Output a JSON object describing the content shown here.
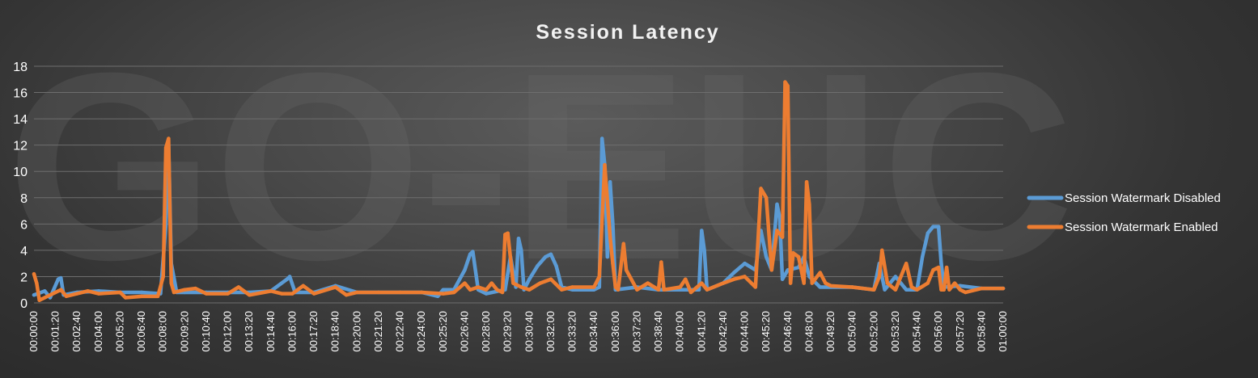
{
  "chart_data": {
    "type": "line",
    "title": "Session Latency",
    "xlabel": "",
    "ylabel": "",
    "ylim": [
      0,
      18
    ],
    "y_ticks": [
      0,
      2,
      4,
      6,
      8,
      10,
      12,
      14,
      16,
      18
    ],
    "x_range": [
      "00:00:00",
      "01:00:00"
    ],
    "x_sample_interval_seconds": 10,
    "x_ticks": [
      "00:00:00",
      "00:01:20",
      "00:02:40",
      "00:04:00",
      "00:05:20",
      "00:06:40",
      "00:08:00",
      "00:09:20",
      "00:10:40",
      "00:12:00",
      "00:13:20",
      "00:14:40",
      "00:16:00",
      "00:17:20",
      "00:18:40",
      "00:20:00",
      "00:21:20",
      "00:22:40",
      "00:24:00",
      "00:25:20",
      "00:26:40",
      "00:28:00",
      "00:29:20",
      "00:30:40",
      "00:32:00",
      "00:33:20",
      "00:34:40",
      "00:36:00",
      "00:37:20",
      "00:38:40",
      "00:40:00",
      "00:41:20",
      "00:42:40",
      "00:44:00",
      "00:45:20",
      "00:46:40",
      "00:48:00",
      "00:49:20",
      "00:50:40",
      "00:52:00",
      "00:53:20",
      "00:54:40",
      "00:56:00",
      "00:57:20",
      "00:58:40",
      "01:00:00"
    ],
    "gridlines": true,
    "legend_position": "right",
    "watermark": "GO-EUC",
    "series": [
      {
        "name": "Session Watermark Disabled",
        "color": "#5b9bd5",
        "points": [
          [
            "00:00:00",
            0.6
          ],
          [
            "00:00:40",
            0.9
          ],
          [
            "00:01:00",
            0.4
          ],
          [
            "00:01:30",
            1.8
          ],
          [
            "00:01:40",
            1.9
          ],
          [
            "00:01:50",
            0.6
          ],
          [
            "00:02:40",
            0.8
          ],
          [
            "00:04:00",
            0.9
          ],
          [
            "00:05:20",
            0.8
          ],
          [
            "00:06:40",
            0.8
          ],
          [
            "00:07:50",
            0.7
          ],
          [
            "00:08:10",
            6.0
          ],
          [
            "00:08:20",
            12.0
          ],
          [
            "00:08:30",
            3.0
          ],
          [
            "00:08:50",
            0.8
          ],
          [
            "00:09:20",
            0.8
          ],
          [
            "00:10:40",
            0.8
          ],
          [
            "00:12:00",
            0.8
          ],
          [
            "00:13:20",
            0.8
          ],
          [
            "00:14:40",
            0.9
          ],
          [
            "00:15:40",
            1.8
          ],
          [
            "00:15:50",
            2.0
          ],
          [
            "00:16:10",
            0.8
          ],
          [
            "00:17:20",
            0.8
          ],
          [
            "00:18:40",
            1.3
          ],
          [
            "00:20:00",
            0.8
          ],
          [
            "00:21:20",
            0.8
          ],
          [
            "00:22:40",
            0.8
          ],
          [
            "00:24:00",
            0.8
          ],
          [
            "00:25:00",
            0.5
          ],
          [
            "00:25:20",
            1.0
          ],
          [
            "00:26:00",
            1.0
          ],
          [
            "00:26:40",
            2.5
          ],
          [
            "00:27:00",
            3.7
          ],
          [
            "00:27:10",
            3.9
          ],
          [
            "00:27:30",
            1.0
          ],
          [
            "00:28:00",
            0.7
          ],
          [
            "00:29:10",
            1.0
          ],
          [
            "00:29:30",
            3.5
          ],
          [
            "00:29:50",
            1.2
          ],
          [
            "00:30:00",
            4.9
          ],
          [
            "00:30:10",
            4.0
          ],
          [
            "00:30:20",
            1.0
          ],
          [
            "00:30:40",
            1.8
          ],
          [
            "00:31:10",
            2.8
          ],
          [
            "00:31:40",
            3.5
          ],
          [
            "00:32:00",
            3.7
          ],
          [
            "00:32:20",
            2.8
          ],
          [
            "00:32:40",
            1.2
          ],
          [
            "00:33:20",
            1.0
          ],
          [
            "00:34:40",
            1.0
          ],
          [
            "00:35:00",
            1.2
          ],
          [
            "00:35:10",
            12.5
          ],
          [
            "00:35:20",
            10.5
          ],
          [
            "00:35:30",
            3.5
          ],
          [
            "00:35:40",
            9.2
          ],
          [
            "00:35:50",
            6.0
          ],
          [
            "00:36:00",
            1.0
          ],
          [
            "00:37:20",
            1.2
          ],
          [
            "00:38:40",
            1.0
          ],
          [
            "00:40:00",
            1.0
          ],
          [
            "00:41:10",
            1.0
          ],
          [
            "00:41:20",
            5.5
          ],
          [
            "00:41:30",
            4.0
          ],
          [
            "00:41:40",
            1.0
          ],
          [
            "00:42:40",
            1.5
          ],
          [
            "00:43:20",
            2.3
          ],
          [
            "00:44:00",
            3.0
          ],
          [
            "00:44:40",
            2.5
          ],
          [
            "00:45:00",
            5.5
          ],
          [
            "00:45:20",
            3.5
          ],
          [
            "00:45:40",
            2.5
          ],
          [
            "00:46:00",
            7.5
          ],
          [
            "00:46:10",
            6.5
          ],
          [
            "00:46:20",
            1.8
          ],
          [
            "00:46:40",
            2.5
          ],
          [
            "00:47:20",
            2.7
          ],
          [
            "00:47:40",
            3.5
          ],
          [
            "00:48:00",
            2.0
          ],
          [
            "00:48:40",
            1.2
          ],
          [
            "00:49:20",
            1.2
          ],
          [
            "00:50:40",
            1.2
          ],
          [
            "00:52:00",
            1.0
          ],
          [
            "00:52:20",
            3.0
          ],
          [
            "00:52:40",
            1.0
          ],
          [
            "00:53:20",
            2.0
          ],
          [
            "00:54:00",
            1.0
          ],
          [
            "00:54:40",
            1.0
          ],
          [
            "00:55:00",
            3.5
          ],
          [
            "00:55:20",
            5.3
          ],
          [
            "00:55:40",
            5.8
          ],
          [
            "00:56:00",
            5.8
          ],
          [
            "00:56:10",
            3.0
          ],
          [
            "00:56:20",
            1.2
          ],
          [
            "00:57:20",
            1.3
          ],
          [
            "00:58:40",
            1.1
          ],
          [
            "01:00:00",
            1.1
          ]
        ]
      },
      {
        "name": "Session Watermark Enabled",
        "color": "#ed7d31",
        "points": [
          [
            "00:00:00",
            2.2
          ],
          [
            "00:00:10",
            1.5
          ],
          [
            "00:00:20",
            0.2
          ],
          [
            "00:00:40",
            0.4
          ],
          [
            "00:01:20",
            0.8
          ],
          [
            "00:01:40",
            1.0
          ],
          [
            "00:02:00",
            0.5
          ],
          [
            "00:02:40",
            0.7
          ],
          [
            "00:03:20",
            0.9
          ],
          [
            "00:04:00",
            0.7
          ],
          [
            "00:05:20",
            0.8
          ],
          [
            "00:05:40",
            0.4
          ],
          [
            "00:06:40",
            0.5
          ],
          [
            "00:07:40",
            0.5
          ],
          [
            "00:08:00",
            2.0
          ],
          [
            "00:08:10",
            11.8
          ],
          [
            "00:08:20",
            12.5
          ],
          [
            "00:08:30",
            1.5
          ],
          [
            "00:08:40",
            0.8
          ],
          [
            "00:09:20",
            1.0
          ],
          [
            "00:10:00",
            1.1
          ],
          [
            "00:10:40",
            0.7
          ],
          [
            "00:12:00",
            0.7
          ],
          [
            "00:12:40",
            1.2
          ],
          [
            "00:13:20",
            0.6
          ],
          [
            "00:14:40",
            0.9
          ],
          [
            "00:15:20",
            0.7
          ],
          [
            "00:16:00",
            0.7
          ],
          [
            "00:16:40",
            1.3
          ],
          [
            "00:17:20",
            0.7
          ],
          [
            "00:18:40",
            1.2
          ],
          [
            "00:19:20",
            0.6
          ],
          [
            "00:20:00",
            0.8
          ],
          [
            "00:21:20",
            0.8
          ],
          [
            "00:22:40",
            0.8
          ],
          [
            "00:24:00",
            0.8
          ],
          [
            "00:25:20",
            0.7
          ],
          [
            "00:26:00",
            0.8
          ],
          [
            "00:26:40",
            1.5
          ],
          [
            "00:27:00",
            1.0
          ],
          [
            "00:27:30",
            1.2
          ],
          [
            "00:28:00",
            1.0
          ],
          [
            "00:28:20",
            1.5
          ],
          [
            "00:28:40",
            1.0
          ],
          [
            "00:29:00",
            0.8
          ],
          [
            "00:29:10",
            5.2
          ],
          [
            "00:29:20",
            5.3
          ],
          [
            "00:29:40",
            1.5
          ],
          [
            "00:30:10",
            1.2
          ],
          [
            "00:30:40",
            1.0
          ],
          [
            "00:31:20",
            1.5
          ],
          [
            "00:32:00",
            1.8
          ],
          [
            "00:32:40",
            1.0
          ],
          [
            "00:33:20",
            1.2
          ],
          [
            "00:34:40",
            1.2
          ],
          [
            "00:35:00",
            2.0
          ],
          [
            "00:35:20",
            10.5
          ],
          [
            "00:35:40",
            5.0
          ],
          [
            "00:35:50",
            3.0
          ],
          [
            "00:36:00",
            1.2
          ],
          [
            "00:36:10",
            1.0
          ],
          [
            "00:36:30",
            4.5
          ],
          [
            "00:36:40",
            2.5
          ],
          [
            "00:37:20",
            1.0
          ],
          [
            "00:38:00",
            1.5
          ],
          [
            "00:38:40",
            1.0
          ],
          [
            "00:38:50",
            3.1
          ],
          [
            "00:39:00",
            1.0
          ],
          [
            "00:40:00",
            1.2
          ],
          [
            "00:40:20",
            1.8
          ],
          [
            "00:40:40",
            0.8
          ],
          [
            "00:41:20",
            1.5
          ],
          [
            "00:41:40",
            1.0
          ],
          [
            "00:42:40",
            1.5
          ],
          [
            "00:43:20",
            1.8
          ],
          [
            "00:44:00",
            2.0
          ],
          [
            "00:44:40",
            1.2
          ],
          [
            "00:45:00",
            8.7
          ],
          [
            "00:45:20",
            8.0
          ],
          [
            "00:45:40",
            2.5
          ],
          [
            "00:46:00",
            5.5
          ],
          [
            "00:46:20",
            5.0
          ],
          [
            "00:46:30",
            16.8
          ],
          [
            "00:46:40",
            16.5
          ],
          [
            "00:46:50",
            1.5
          ],
          [
            "00:47:00",
            3.8
          ],
          [
            "00:47:20",
            3.5
          ],
          [
            "00:47:40",
            1.5
          ],
          [
            "00:47:50",
            9.2
          ],
          [
            "00:48:00",
            7.5
          ],
          [
            "00:48:10",
            1.5
          ],
          [
            "00:48:40",
            2.3
          ],
          [
            "00:49:00",
            1.5
          ],
          [
            "00:49:20",
            1.3
          ],
          [
            "00:50:40",
            1.2
          ],
          [
            "00:52:00",
            1.0
          ],
          [
            "00:52:20",
            2.0
          ],
          [
            "00:52:30",
            4.0
          ],
          [
            "00:52:50",
            1.5
          ],
          [
            "00:53:20",
            1.0
          ],
          [
            "00:54:00",
            3.0
          ],
          [
            "00:54:20",
            1.2
          ],
          [
            "00:54:40",
            1.0
          ],
          [
            "00:55:20",
            1.5
          ],
          [
            "00:55:40",
            2.5
          ],
          [
            "00:56:00",
            2.7
          ],
          [
            "00:56:10",
            1.0
          ],
          [
            "00:56:20",
            1.0
          ],
          [
            "00:56:30",
            2.7
          ],
          [
            "00:56:40",
            1.0
          ],
          [
            "00:57:00",
            1.5
          ],
          [
            "00:57:20",
            1.0
          ],
          [
            "00:57:40",
            0.8
          ],
          [
            "00:58:40",
            1.1
          ],
          [
            "01:00:00",
            1.1
          ]
        ]
      }
    ]
  }
}
